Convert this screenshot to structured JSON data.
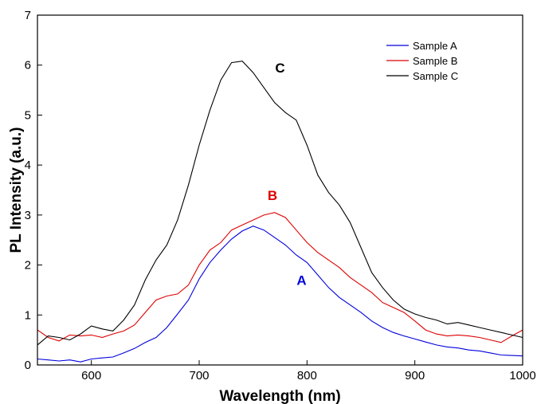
{
  "chart_data": {
    "type": "line",
    "xlabel": "Wavelength (nm)",
    "ylabel": "PL Intensity (a.u.)",
    "xlim": [
      550,
      1000
    ],
    "ylim": [
      0,
      7
    ],
    "xticks": [
      600,
      700,
      800,
      900,
      1000
    ],
    "yticks": [
      0,
      1,
      2,
      3,
      4,
      5,
      6,
      7
    ],
    "grid": false,
    "legend_position": "top-right",
    "series": [
      {
        "name": "Sample A",
        "color": "#0000dd",
        "points": [
          [
            550,
            0.12
          ],
          [
            560,
            0.1
          ],
          [
            570,
            0.08
          ],
          [
            580,
            0.1
          ],
          [
            590,
            0.06
          ],
          [
            600,
            0.12
          ],
          [
            610,
            0.14
          ],
          [
            620,
            0.16
          ],
          [
            630,
            0.24
          ],
          [
            640,
            0.33
          ],
          [
            650,
            0.45
          ],
          [
            660,
            0.55
          ],
          [
            670,
            0.75
          ],
          [
            680,
            1.02
          ],
          [
            690,
            1.3
          ],
          [
            700,
            1.72
          ],
          [
            710,
            2.05
          ],
          [
            720,
            2.3
          ],
          [
            730,
            2.52
          ],
          [
            740,
            2.68
          ],
          [
            750,
            2.78
          ],
          [
            760,
            2.7
          ],
          [
            770,
            2.55
          ],
          [
            780,
            2.4
          ],
          [
            790,
            2.2
          ],
          [
            800,
            2.05
          ],
          [
            810,
            1.8
          ],
          [
            820,
            1.55
          ],
          [
            830,
            1.35
          ],
          [
            840,
            1.2
          ],
          [
            850,
            1.05
          ],
          [
            860,
            0.88
          ],
          [
            870,
            0.75
          ],
          [
            880,
            0.65
          ],
          [
            890,
            0.58
          ],
          [
            900,
            0.52
          ],
          [
            910,
            0.46
          ],
          [
            920,
            0.4
          ],
          [
            930,
            0.36
          ],
          [
            940,
            0.34
          ],
          [
            950,
            0.3
          ],
          [
            960,
            0.28
          ],
          [
            970,
            0.24
          ],
          [
            980,
            0.2
          ],
          [
            990,
            0.19
          ],
          [
            1000,
            0.18
          ]
        ]
      },
      {
        "name": "Sample B",
        "color": "#dd0000",
        "points": [
          [
            550,
            0.7
          ],
          [
            560,
            0.55
          ],
          [
            570,
            0.48
          ],
          [
            580,
            0.6
          ],
          [
            590,
            0.58
          ],
          [
            600,
            0.6
          ],
          [
            610,
            0.55
          ],
          [
            620,
            0.62
          ],
          [
            630,
            0.68
          ],
          [
            640,
            0.8
          ],
          [
            650,
            1.05
          ],
          [
            660,
            1.3
          ],
          [
            670,
            1.38
          ],
          [
            680,
            1.42
          ],
          [
            690,
            1.6
          ],
          [
            700,
            2.0
          ],
          [
            710,
            2.3
          ],
          [
            720,
            2.45
          ],
          [
            730,
            2.7
          ],
          [
            740,
            2.8
          ],
          [
            750,
            2.9
          ],
          [
            760,
            3.0
          ],
          [
            770,
            3.05
          ],
          [
            780,
            2.95
          ],
          [
            790,
            2.7
          ],
          [
            800,
            2.45
          ],
          [
            810,
            2.25
          ],
          [
            820,
            2.1
          ],
          [
            830,
            1.95
          ],
          [
            840,
            1.75
          ],
          [
            850,
            1.6
          ],
          [
            860,
            1.45
          ],
          [
            870,
            1.25
          ],
          [
            880,
            1.15
          ],
          [
            890,
            1.05
          ],
          [
            900,
            0.88
          ],
          [
            910,
            0.7
          ],
          [
            920,
            0.62
          ],
          [
            930,
            0.58
          ],
          [
            940,
            0.6
          ],
          [
            950,
            0.58
          ],
          [
            960,
            0.55
          ],
          [
            970,
            0.5
          ],
          [
            980,
            0.45
          ],
          [
            990,
            0.58
          ],
          [
            1000,
            0.7
          ]
        ]
      },
      {
        "name": "Sample C",
        "color": "#000000",
        "points": [
          [
            550,
            0.4
          ],
          [
            560,
            0.58
          ],
          [
            570,
            0.55
          ],
          [
            580,
            0.5
          ],
          [
            590,
            0.62
          ],
          [
            600,
            0.78
          ],
          [
            610,
            0.72
          ],
          [
            620,
            0.68
          ],
          [
            630,
            0.9
          ],
          [
            640,
            1.2
          ],
          [
            650,
            1.7
          ],
          [
            660,
            2.1
          ],
          [
            670,
            2.4
          ],
          [
            680,
            2.9
          ],
          [
            690,
            3.6
          ],
          [
            700,
            4.4
          ],
          [
            710,
            5.1
          ],
          [
            720,
            5.7
          ],
          [
            730,
            6.05
          ],
          [
            740,
            6.08
          ],
          [
            750,
            5.85
          ],
          [
            760,
            5.55
          ],
          [
            770,
            5.25
          ],
          [
            780,
            5.05
          ],
          [
            790,
            4.9
          ],
          [
            800,
            4.4
          ],
          [
            810,
            3.8
          ],
          [
            820,
            3.45
          ],
          [
            830,
            3.2
          ],
          [
            840,
            2.85
          ],
          [
            850,
            2.35
          ],
          [
            860,
            1.85
          ],
          [
            870,
            1.55
          ],
          [
            880,
            1.3
          ],
          [
            890,
            1.12
          ],
          [
            900,
            1.02
          ],
          [
            910,
            0.95
          ],
          [
            920,
            0.9
          ],
          [
            930,
            0.82
          ],
          [
            940,
            0.85
          ],
          [
            950,
            0.8
          ],
          [
            960,
            0.75
          ],
          [
            970,
            0.7
          ],
          [
            980,
            0.65
          ],
          [
            990,
            0.6
          ],
          [
            1000,
            0.55
          ]
        ]
      }
    ],
    "annotations": [
      {
        "text": "A",
        "x": 795,
        "y": 1.6,
        "color": "#0000dd"
      },
      {
        "text": "B",
        "x": 768,
        "y": 3.3,
        "color": "#dd0000"
      },
      {
        "text": "C",
        "x": 775,
        "y": 5.85,
        "color": "#000000"
      }
    ]
  }
}
